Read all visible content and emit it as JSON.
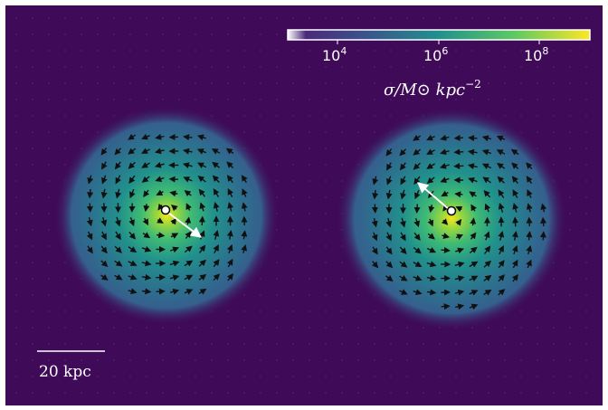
{
  "colorbar": {
    "tick_labels": [
      {
        "base": "10",
        "exp": "4"
      },
      {
        "base": "10",
        "exp": "6"
      },
      {
        "base": "10",
        "exp": "8"
      }
    ],
    "label": "σ/M⊙ kpc",
    "label_exp": "−2"
  },
  "scale_bar": {
    "label": "20 kpc"
  },
  "colors": {
    "background": "#3f0a58",
    "viridis_low": "#440154",
    "viridis_mid": "#21918c",
    "viridis_high": "#fde725"
  }
}
